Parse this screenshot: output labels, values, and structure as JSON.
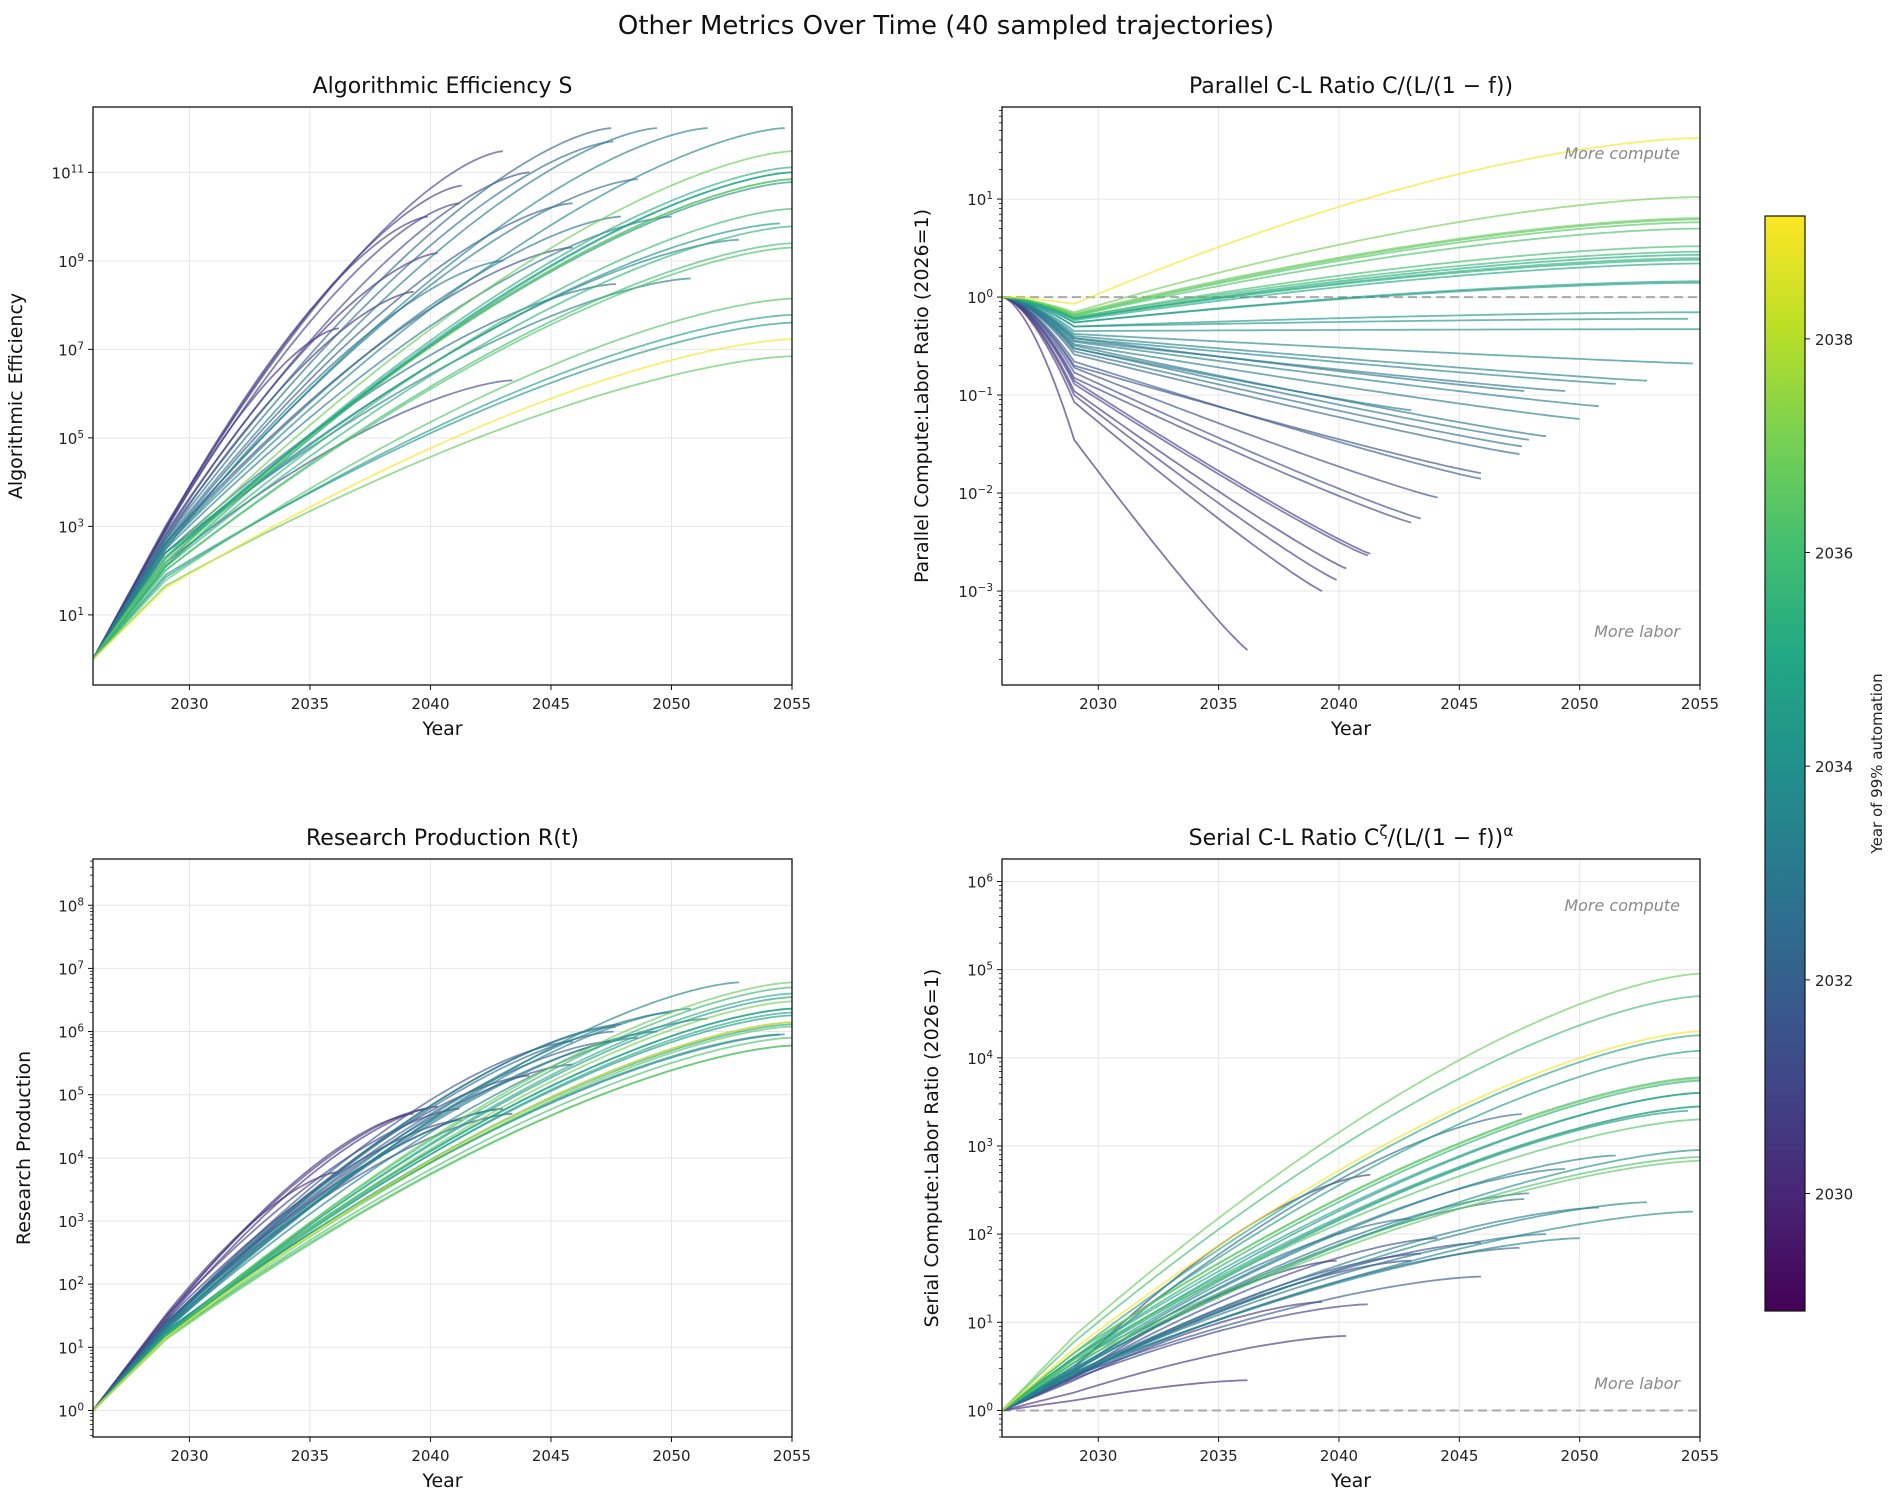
{
  "chart_data": {
    "type": "line",
    "title": "Other Metrics Over Time (40 sampled trajectories)",
    "x_start_year": 2026,
    "trajectory_value_note_keys": [
      "value_2029",
      "value_end"
    ],
    "colorbar": {
      "label": "Year of 99% automation",
      "colormap": "viridis",
      "range": [
        2028.9,
        2039.15
      ],
      "ticks": [
        2030,
        2032,
        2034,
        2036,
        2038
      ]
    },
    "panels": [
      {
        "key": "S",
        "title": "Algorithmic Efficiency S",
        "xlabel": "Year",
        "ylabel": "Algorithmic Efficiency",
        "yscale": "log",
        "xlim": [
          2026,
          2055
        ],
        "ylim": [
          0.26,
          3000000000000.0
        ],
        "xticks": [
          2030,
          2035,
          2040,
          2045,
          2050,
          2055
        ],
        "yticks": [
          10,
          1000,
          100000,
          10000000,
          1000000000,
          100000000000
        ],
        "minor_ticks": false,
        "grid": true,
        "reference_line": null,
        "annotations": []
      },
      {
        "key": "P",
        "title": "Parallel C-L Ratio C/(L/(1 − f))",
        "xlabel": "Year",
        "ylabel": "Parallel Compute:Labor Ratio (2026=1)",
        "yscale": "log",
        "xlim": [
          2026,
          2055
        ],
        "ylim": [
          0.00011,
          87
        ],
        "xticks": [
          2030,
          2035,
          2040,
          2045,
          2050,
          2055
        ],
        "yticks": [
          0.001,
          0.01,
          0.1,
          1,
          10
        ],
        "minor_ticks": true,
        "grid": true,
        "reference_line": 1,
        "annotations": [
          {
            "text": "More compute",
            "position": "top-right"
          },
          {
            "text": "More labor",
            "position": "bottom-right"
          }
        ]
      },
      {
        "key": "R",
        "title": "Research Production R(t)",
        "xlabel": "Year",
        "ylabel": "Research Production",
        "yscale": "log",
        "xlim": [
          2026,
          2055
        ],
        "ylim": [
          0.38,
          540000000
        ],
        "xticks": [
          2030,
          2035,
          2040,
          2045,
          2050,
          2055
        ],
        "yticks": [
          1,
          10,
          100,
          1000,
          10000,
          100000,
          1000000,
          10000000,
          100000000
        ],
        "minor_ticks": true,
        "grid": true,
        "reference_line": null,
        "annotations": []
      },
      {
        "key": "Ser",
        "title": "Serial C-L Ratio C^ζ/(L/(1 − f))^α",
        "xlabel": "Year",
        "ylabel": "Serial Compute:Labor Ratio (2026=1)",
        "yscale": "log",
        "xlim": [
          2026,
          2055
        ],
        "ylim": [
          0.5,
          1800000
        ],
        "xticks": [
          2030,
          2035,
          2040,
          2045,
          2050,
          2055
        ],
        "yticks": [
          1,
          10,
          100,
          1000,
          10000,
          100000,
          1000000
        ],
        "minor_ticks": true,
        "grid": true,
        "reference_line": 1,
        "annotations": [
          {
            "text": "More compute",
            "position": "top-right"
          },
          {
            "text": "More labor",
            "position": "bottom-right"
          }
        ]
      }
    ],
    "trajectories": [
      {
        "automation_year": 2030.2,
        "end_year": 2036.2,
        "S": [
          800,
          30000000.0
        ],
        "P": [
          0.035,
          0.00025
        ],
        "R": [
          32,
          6000
        ],
        "Ser": [
          1.3,
          2.2
        ]
      },
      {
        "automation_year": 2030.5,
        "end_year": 2039.3,
        "S": [
          500,
          200000000.0
        ],
        "P": [
          0.085,
          0.001
        ],
        "R": [
          28,
          50000
        ],
        "Ser": [
          2.2,
          17
        ]
      },
      {
        "automation_year": 2030.6,
        "end_year": 2039.9,
        "S": [
          900,
          10000000000.0
        ],
        "P": [
          0.1,
          0.0013
        ],
        "R": [
          30,
          60000
        ],
        "Ser": [
          2.4,
          50
        ]
      },
      {
        "automation_year": 2030.4,
        "end_year": 2040.3,
        "S": [
          600,
          1500000000.0
        ],
        "P": [
          0.11,
          0.0017
        ],
        "R": [
          26,
          65000
        ],
        "Ser": [
          1.6,
          7
        ]
      },
      {
        "automation_year": 2030.9,
        "end_year": 2041.2,
        "S": [
          800,
          20000000000.0
        ],
        "P": [
          0.13,
          0.0023
        ],
        "R": [
          30,
          60000
        ],
        "Ser": [
          2.3,
          16
        ]
      },
      {
        "automation_year": 2030.7,
        "end_year": 2041.3,
        "S": [
          900,
          50000000000.0
        ],
        "P": [
          0.14,
          0.0024
        ],
        "R": [
          26,
          40000
        ],
        "Ser": [
          3,
          470
        ]
      },
      {
        "automation_year": 2031.0,
        "end_year": 2043.0,
        "S": [
          1000,
          300000000000.0
        ],
        "P": [
          0.15,
          0.005
        ],
        "R": [
          24,
          60000
        ],
        "Ser": [
          2.4,
          50
        ]
      },
      {
        "automation_year": 2031.2,
        "end_year": 2043.4,
        "S": [
          150,
          2000000.0
        ],
        "P": [
          0.17,
          0.0055
        ],
        "R": [
          24,
          50000
        ],
        "Ser": [
          2.4,
          60
        ]
      },
      {
        "automation_year": 2031.3,
        "end_year": 2044.1,
        "S": [
          700,
          100000000000.0
        ],
        "P": [
          0.19,
          0.009
        ],
        "R": [
          22,
          200000
        ],
        "Ser": [
          2.5,
          90
        ]
      },
      {
        "automation_year": 2031.5,
        "end_year": 2045.9,
        "S": [
          400,
          2000000000.0
        ],
        "P": [
          0.2,
          0.016
        ],
        "R": [
          22,
          300000
        ],
        "Ser": [
          2.4,
          80
        ]
      },
      {
        "automation_year": 2031.8,
        "end_year": 2045.9,
        "S": [
          400,
          20000000000.0
        ],
        "P": [
          0.22,
          0.014
        ],
        "R": [
          22,
          700000
        ],
        "Ser": [
          2.5,
          33
        ]
      },
      {
        "automation_year": 2032.3,
        "end_year": 2047.5,
        "S": [
          600,
          1000000000000.0
        ],
        "P": [
          0.26,
          0.025
        ],
        "R": [
          24,
          700000
        ],
        "Ser": [
          2.4,
          70
        ]
      },
      {
        "automation_year": 2032.6,
        "end_year": 2047.6,
        "S": [
          500,
          500000000000.0
        ],
        "P": [
          0.28,
          0.03
        ],
        "R": [
          22,
          1000000
        ],
        "Ser": [
          3.2,
          2300
        ]
      },
      {
        "automation_year": 2032.8,
        "end_year": 2047.7,
        "S": [
          250,
          300000000.0
        ],
        "P": [
          0.38,
          0.11
        ],
        "R": [
          22,
          1200000
        ],
        "Ser": [
          2.8,
          250
        ]
      },
      {
        "automation_year": 2032.9,
        "end_year": 2047.9,
        "S": [
          350,
          10000000000.0
        ],
        "P": [
          0.3,
          0.035
        ],
        "R": [
          21,
          1300000
        ],
        "Ser": [
          2.8,
          290
        ]
      },
      {
        "automation_year": 2033.0,
        "end_year": 2048.6,
        "S": [
          400,
          70000000000.0
        ],
        "P": [
          0.32,
          0.038
        ],
        "R": [
          20,
          800000
        ],
        "Ser": [
          2.6,
          100
        ]
      },
      {
        "automation_year": 2033.1,
        "end_year": 2049.4,
        "S": [
          450,
          1000000000000.0
        ],
        "P": [
          0.36,
          0.11
        ],
        "R": [
          20,
          1000000
        ],
        "Ser": [
          2.9,
          550
        ]
      },
      {
        "automation_year": 2033.2,
        "end_year": 2050.0,
        "S": [
          300,
          10000000000.0
        ],
        "P": [
          0.33,
          0.057
        ],
        "R": [
          20,
          2000000
        ],
        "Ser": [
          2.6,
          90
        ]
      },
      {
        "automation_year": 2033.3,
        "end_year": 2050.8,
        "S": [
          250,
          400000000.0
        ],
        "P": [
          0.35,
          0.077
        ],
        "R": [
          19,
          2300000
        ],
        "Ser": [
          2.7,
          200
        ]
      },
      {
        "automation_year": 2033.4,
        "end_year": 2051.5,
        "S": [
          400,
          1000000000000.0
        ],
        "P": [
          0.38,
          0.13
        ],
        "R": [
          19,
          1600000
        ],
        "Ser": [
          3,
          780
        ]
      },
      {
        "automation_year": 2033.5,
        "end_year": 2052.8,
        "S": [
          200,
          3000000000.0
        ],
        "P": [
          0.4,
          0.14
        ],
        "R": [
          18,
          6000000
        ],
        "Ser": [
          2.7,
          230
        ]
      },
      {
        "automation_year": 2033.6,
        "end_year": 2054.7,
        "S": [
          350,
          1000000000000.0
        ],
        "P": [
          0.42,
          0.21
        ],
        "R": [
          18,
          900000
        ],
        "Ser": [
          2.7,
          180
        ]
      },
      {
        "automation_year": 2033.0,
        "end_year": 2043.0,
        "S": [
          300,
          1000000000.0
        ],
        "P": [
          0.3,
          0.07
        ],
        "R": [
          21,
          60000
        ],
        "Ser": [
          2.8,
          150
        ]
      },
      {
        "automation_year": 2034.0,
        "end_year": 2055,
        "S": [
          200,
          60000000000.0
        ],
        "P": [
          0.45,
          0.47
        ],
        "R": [
          17,
          2300000
        ],
        "Ser": [
          3,
          900
        ]
      },
      {
        "automation_year": 2034.2,
        "end_year": 2054.5,
        "S": [
          250,
          7000000000.0
        ],
        "P": [
          0.5,
          0.6
        ],
        "R": [
          17,
          900000
        ],
        "Ser": [
          3.2,
          2500
        ]
      },
      {
        "automation_year": 2034.3,
        "end_year": 2055,
        "S": [
          80,
          40000000.0
        ],
        "P": [
          0.5,
          0.7
        ],
        "R": [
          17,
          1800000
        ],
        "Ser": [
          3.5,
          4000
        ]
      },
      {
        "automation_year": 2034.5,
        "end_year": 2055,
        "S": [
          150,
          100000000000.0
        ],
        "P": [
          0.55,
          1.4
        ],
        "R": [
          16,
          3500000
        ],
        "Ser": [
          4,
          12000
        ]
      },
      {
        "automation_year": 2034.7,
        "end_year": 2055,
        "S": [
          70,
          60000000.0
        ],
        "P": [
          0.55,
          1.45
        ],
        "R": [
          16,
          1300000
        ],
        "Ser": [
          3.5,
          2800
        ]
      },
      {
        "automation_year": 2035.0,
        "end_year": 2055,
        "S": [
          180,
          70000000000.0
        ],
        "P": [
          0.58,
          2.2
        ],
        "R": [
          16,
          2300000
        ],
        "Ser": [
          4.5,
          18000
        ]
      },
      {
        "automation_year": 2035.3,
        "end_year": 2055,
        "S": [
          150,
          130000000000.0
        ],
        "P": [
          0.6,
          2.4
        ],
        "R": [
          15,
          4000000
        ],
        "Ser": [
          4,
          5500
        ]
      },
      {
        "automation_year": 2035.5,
        "end_year": 2055,
        "S": [
          120,
          6000000000.0
        ],
        "P": [
          0.6,
          2.5
        ],
        "R": [
          15,
          1400000
        ],
        "Ser": [
          3.8,
          2800
        ]
      },
      {
        "automation_year": 2035.8,
        "end_year": 2055,
        "S": [
          130,
          15000000000.0
        ],
        "P": [
          0.62,
          2.9
        ],
        "R": [
          15,
          5000000
        ],
        "Ser": [
          4.5,
          6000
        ]
      },
      {
        "automation_year": 2036.0,
        "end_year": 2055,
        "S": [
          100,
          2500000000.0
        ],
        "P": [
          0.62,
          3.3
        ],
        "R": [
          14,
          600000
        ],
        "Ser": [
          6,
          50000
        ]
      },
      {
        "automation_year": 2036.2,
        "end_year": 2055,
        "S": [
          100,
          2000000000.0
        ],
        "P": [
          0.64,
          5
        ],
        "R": [
          14,
          800000
        ],
        "Ser": [
          3.8,
          750
        ]
      },
      {
        "automation_year": 2036.4,
        "end_year": 2055,
        "S": [
          60,
          140000000.0
        ],
        "P": [
          0.65,
          5.8
        ],
        "R": [
          14,
          1200000
        ],
        "Ser": [
          4,
          2000
        ]
      },
      {
        "automation_year": 2036.6,
        "end_year": 2055,
        "S": [
          45,
          7000000.0
        ],
        "P": [
          0.66,
          6.2
        ],
        "R": [
          13,
          600000
        ],
        "Ser": [
          3.5,
          680
        ]
      },
      {
        "automation_year": 2036.8,
        "end_year": 2055,
        "S": [
          200,
          300000000000.0
        ],
        "P": [
          0.68,
          6.4
        ],
        "R": [
          14,
          6000000
        ],
        "Ser": [
          7,
          90000
        ]
      },
      {
        "automation_year": 2037.0,
        "end_year": 2055,
        "S": [
          150,
          70000000000.0
        ],
        "P": [
          0.7,
          10.5
        ],
        "R": [
          14,
          3000000
        ],
        "Ser": [
          4.5,
          5800
        ]
      },
      {
        "automation_year": 2035.0,
        "end_year": 2055,
        "S": [
          120,
          100000000000.0
        ],
        "P": [
          0.6,
          2.7
        ],
        "R": [
          15,
          2000000
        ],
        "Ser": [
          4,
          4000
        ]
      },
      {
        "automation_year": 2039.0,
        "end_year": 2055,
        "S": [
          40,
          17000000.0
        ],
        "P": [
          0.85,
          42
        ],
        "R": [
          14,
          1400000
        ],
        "Ser": [
          5,
          20000
        ]
      }
    ],
    "colors": {
      "grid": "#e6e6e6",
      "reference_line": "#aaaaaa",
      "annotation": "#8a8a8a"
    }
  }
}
